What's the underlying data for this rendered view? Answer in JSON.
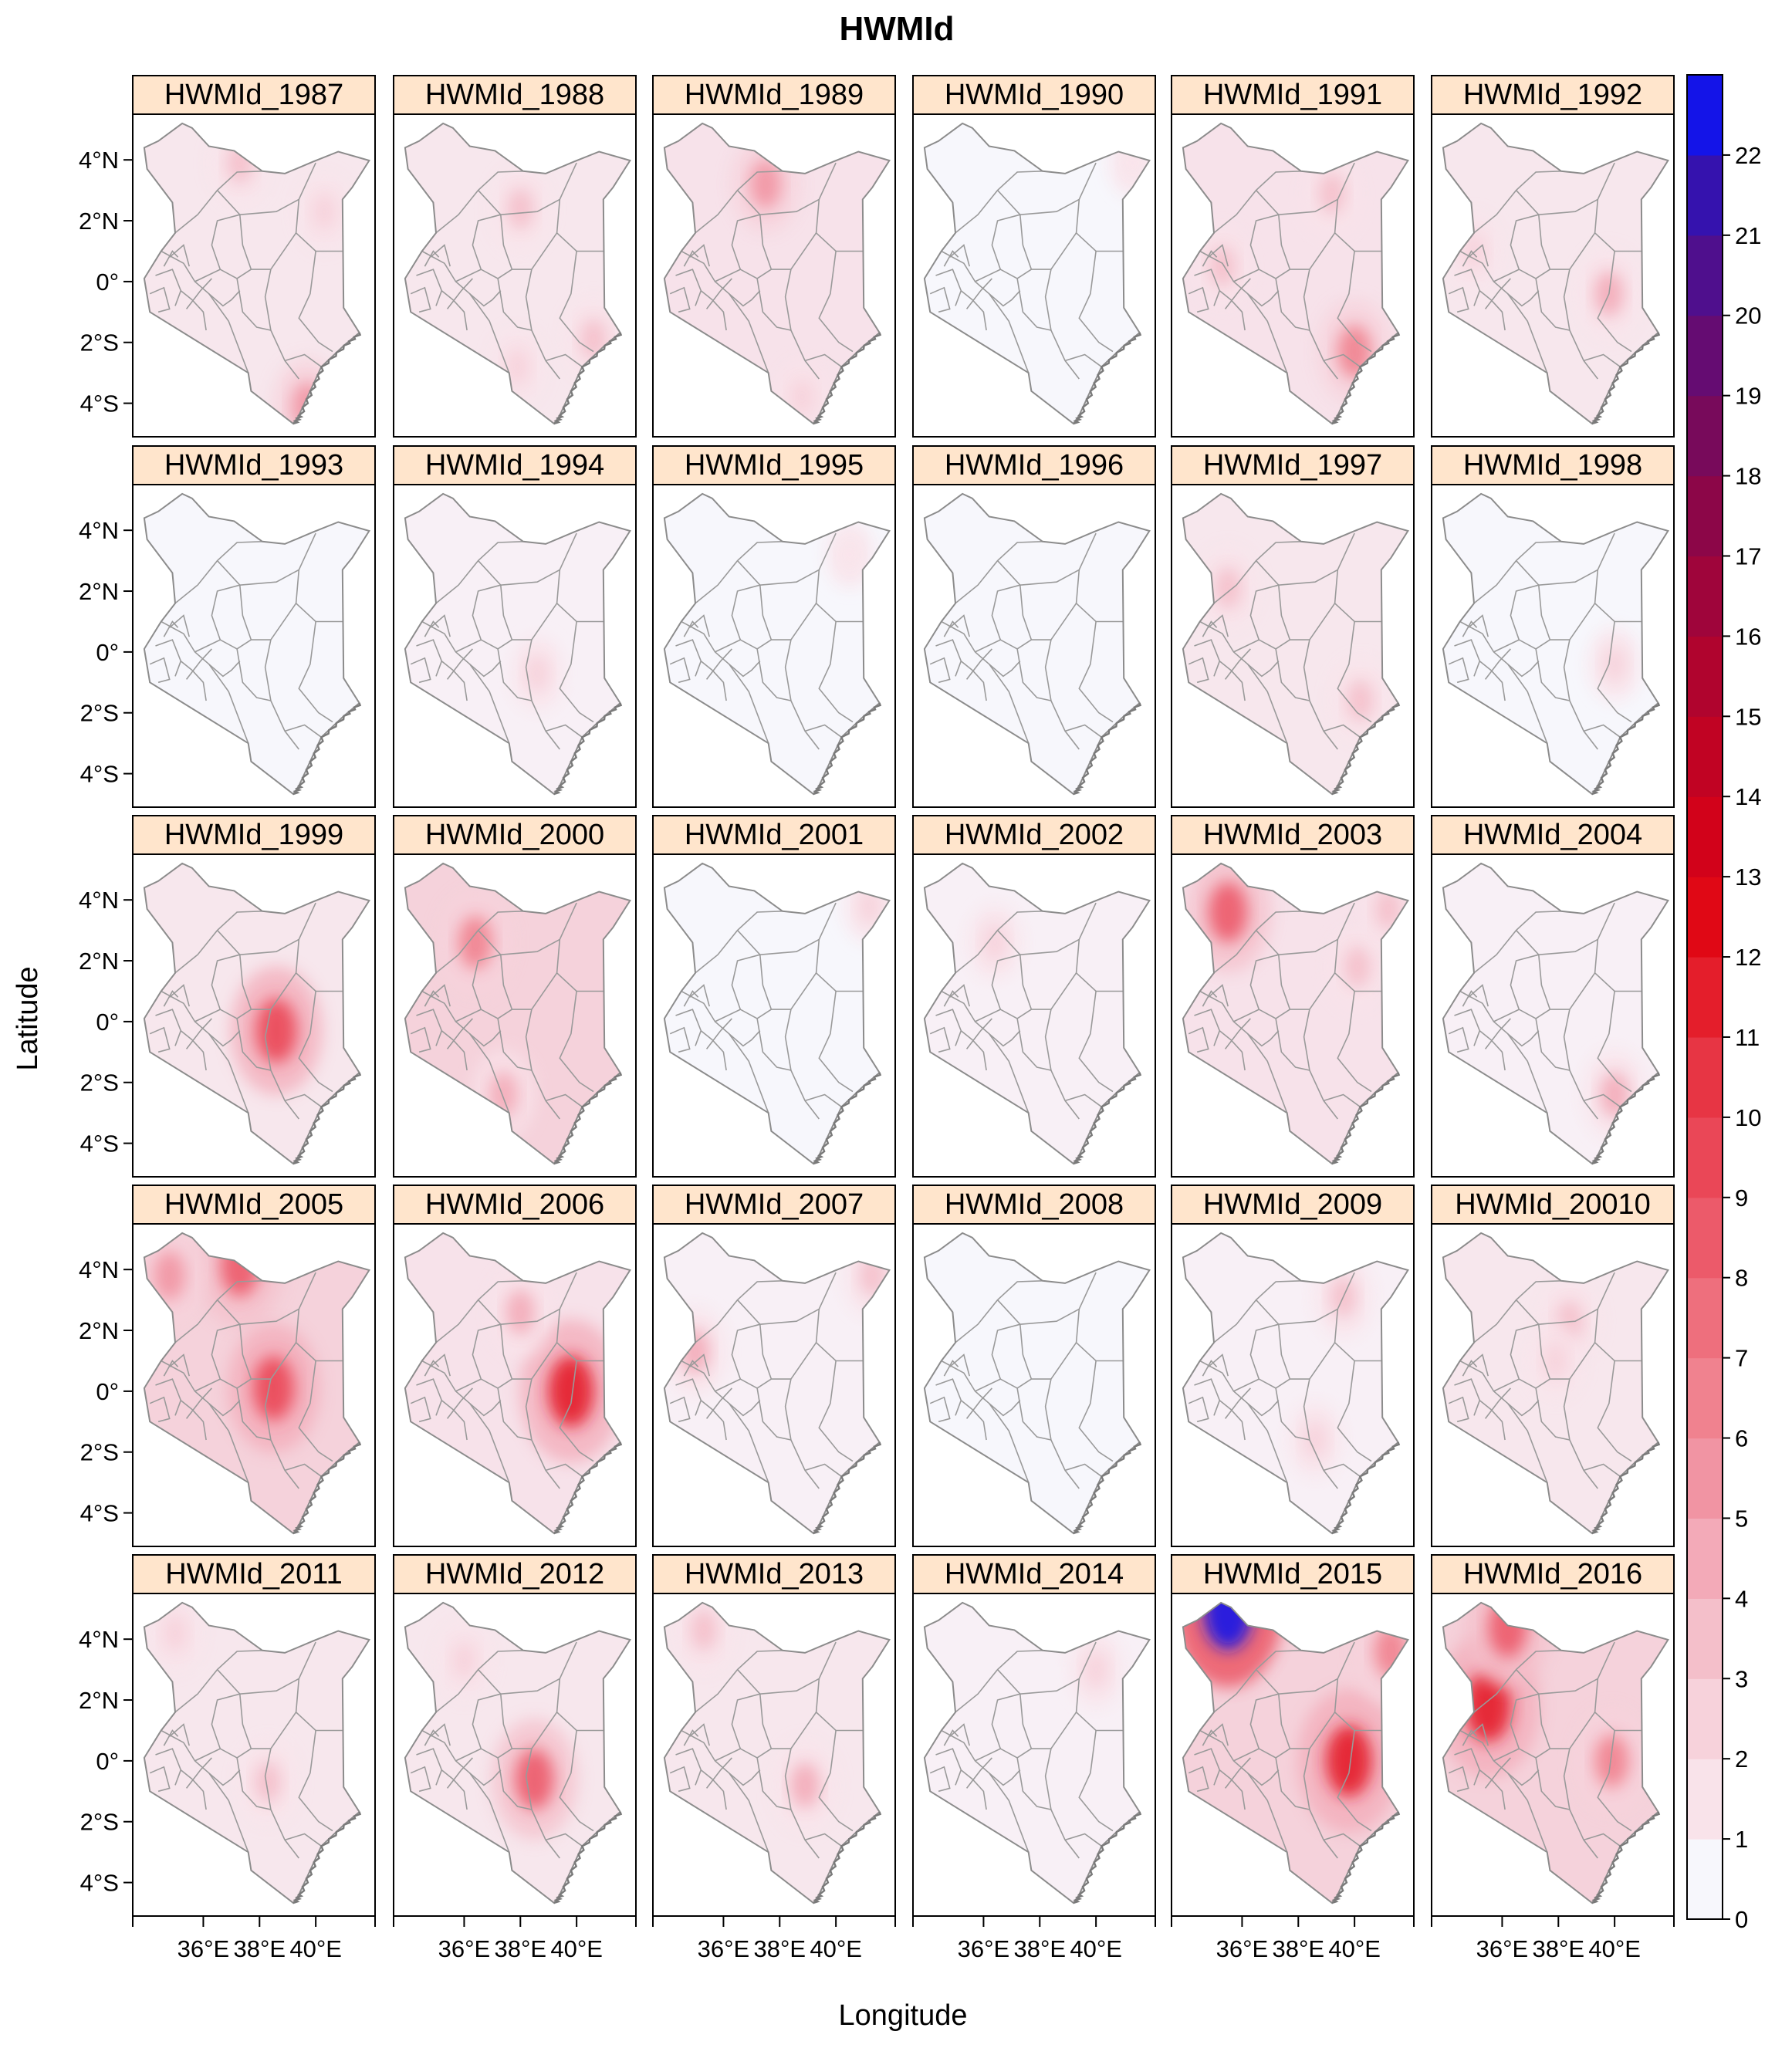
{
  "chart_data": {
    "type": "heatmap",
    "title": "HWMId",
    "xlabel": "Longitude",
    "ylabel": "Latitude",
    "x_ticks": [
      "36°E",
      "38°E",
      "40°E"
    ],
    "y_ticks": [
      "4°N",
      "2°N",
      "0°",
      "2°S",
      "4°S"
    ],
    "panels": [
      {
        "label": "HWMId_1987",
        "intensity": 2,
        "hotspots": [
          {
            "lon": 37.3,
            "lat": 3.9,
            "value": 3
          },
          {
            "lon": 39.7,
            "lat": -4.1,
            "value": 5
          },
          {
            "lon": 40.3,
            "lat": 2.3,
            "value": 2
          }
        ]
      },
      {
        "label": "HWMId_1988",
        "intensity": 2,
        "hotspots": [
          {
            "lon": 38.0,
            "lat": 2.4,
            "value": 3
          },
          {
            "lon": 40.6,
            "lat": -1.9,
            "value": 3
          },
          {
            "lon": 37.9,
            "lat": -2.8,
            "value": 2
          }
        ]
      },
      {
        "label": "HWMId_1989",
        "intensity": 3,
        "hotspots": [
          {
            "lon": 37.5,
            "lat": 3.2,
            "value": 5
          },
          {
            "lon": 38.8,
            "lat": -3.8,
            "value": 2
          }
        ]
      },
      {
        "label": "HWMId_1990",
        "intensity": 0,
        "hotspots": [
          {
            "lon": 41.3,
            "lat": 3.9,
            "value": 1
          }
        ]
      },
      {
        "label": "HWMId_1991",
        "intensity": 3,
        "hotspots": [
          {
            "lon": 40.0,
            "lat": -2.3,
            "value": 6
          },
          {
            "lon": 35.3,
            "lat": 0.5,
            "value": 3
          },
          {
            "lon": 39.2,
            "lat": 2.9,
            "value": 3
          }
        ]
      },
      {
        "label": "HWMId_1992",
        "intensity": 2,
        "hotspots": [
          {
            "lon": 39.8,
            "lat": -0.4,
            "value": 4
          },
          {
            "lon": 35.0,
            "lat": 1.0,
            "value": 2
          }
        ]
      },
      {
        "label": "HWMId_1993",
        "intensity": 0,
        "hotspots": []
      },
      {
        "label": "HWMId_1994",
        "intensity": 1,
        "hotspots": [
          {
            "lon": 38.6,
            "lat": -0.7,
            "value": 2
          }
        ]
      },
      {
        "label": "HWMId_1995",
        "intensity": 0,
        "hotspots": [
          {
            "lon": 40.5,
            "lat": 3.2,
            "value": 1
          }
        ]
      },
      {
        "label": "HWMId_1996",
        "intensity": 0,
        "hotspots": []
      },
      {
        "label": "HWMId_1997",
        "intensity": 2,
        "hotspots": [
          {
            "lon": 35.5,
            "lat": 2.1,
            "value": 3
          },
          {
            "lon": 40.2,
            "lat": -1.6,
            "value": 3
          }
        ]
      },
      {
        "label": "HWMId_1998",
        "intensity": 0,
        "hotspots": [
          {
            "lon": 40.0,
            "lat": -0.4,
            "value": 2
          }
        ]
      },
      {
        "label": "HWMId_1999",
        "intensity": 2,
        "hotspots": [
          {
            "lon": 38.6,
            "lat": -0.3,
            "value": 9
          }
        ]
      },
      {
        "label": "HWMId_2000",
        "intensity": 4,
        "hotspots": [
          {
            "lon": 36.4,
            "lat": 2.6,
            "value": 6
          },
          {
            "lon": 37.4,
            "lat": -2.4,
            "value": 4
          }
        ]
      },
      {
        "label": "HWMId_2001",
        "intensity": 0,
        "hotspots": [
          {
            "lon": 41.2,
            "lat": 3.8,
            "value": 2
          }
        ]
      },
      {
        "label": "HWMId_2002",
        "intensity": 1,
        "hotspots": [
          {
            "lon": 36.4,
            "lat": 2.6,
            "value": 2
          }
        ]
      },
      {
        "label": "HWMId_2003",
        "intensity": 3,
        "hotspots": [
          {
            "lon": 35.5,
            "lat": 3.6,
            "value": 8
          },
          {
            "lon": 40.1,
            "lat": 1.8,
            "value": 3
          },
          {
            "lon": 41.2,
            "lat": 3.7,
            "value": 3
          }
        ]
      },
      {
        "label": "HWMId_2004",
        "intensity": 1,
        "hotspots": [
          {
            "lon": 40.0,
            "lat": -2.4,
            "value": 4
          }
        ]
      },
      {
        "label": "HWMId_2005",
        "intensity": 4,
        "hotspots": [
          {
            "lon": 37.3,
            "lat": 4.1,
            "value": 8
          },
          {
            "lon": 38.5,
            "lat": 0.1,
            "value": 9
          },
          {
            "lon": 34.8,
            "lat": 3.8,
            "value": 5
          }
        ]
      },
      {
        "label": "HWMId_2006",
        "intensity": 3,
        "hotspots": [
          {
            "lon": 39.8,
            "lat": 0.0,
            "value": 11
          },
          {
            "lon": 38.0,
            "lat": 2.6,
            "value": 4
          }
        ]
      },
      {
        "label": "HWMId_2007",
        "intensity": 1,
        "hotspots": [
          {
            "lon": 35.0,
            "lat": 1.3,
            "value": 4
          },
          {
            "lon": 41.3,
            "lat": 3.8,
            "value": 3
          }
        ]
      },
      {
        "label": "HWMId_2008",
        "intensity": 0,
        "hotspots": []
      },
      {
        "label": "HWMId_2009",
        "intensity": 1,
        "hotspots": [
          {
            "lon": 39.6,
            "lat": 3.1,
            "value": 3
          },
          {
            "lon": 38.6,
            "lat": -1.6,
            "value": 2
          }
        ]
      },
      {
        "label": "HWMId_20010",
        "intensity": 2,
        "hotspots": [
          {
            "lon": 38.4,
            "lat": 2.3,
            "value": 3
          },
          {
            "lon": 37.9,
            "lat": 1.0,
            "value": 2
          }
        ]
      },
      {
        "label": "HWMId_2011",
        "intensity": 2,
        "hotspots": [
          {
            "lon": 38.3,
            "lat": -0.7,
            "value": 3
          },
          {
            "lon": 35.0,
            "lat": 4.2,
            "value": 2
          }
        ]
      },
      {
        "label": "HWMId_2012",
        "intensity": 2,
        "hotspots": [
          {
            "lon": 38.5,
            "lat": -0.6,
            "value": 8
          },
          {
            "lon": 36.0,
            "lat": 3.3,
            "value": 2
          }
        ]
      },
      {
        "label": "HWMId_2013",
        "intensity": 2,
        "hotspots": [
          {
            "lon": 38.9,
            "lat": -0.8,
            "value": 4
          },
          {
            "lon": 35.3,
            "lat": 4.3,
            "value": 3
          }
        ]
      },
      {
        "label": "HWMId_2014",
        "intensity": 1,
        "hotspots": [
          {
            "lon": 40.0,
            "lat": 3.0,
            "value": 2
          }
        ]
      },
      {
        "label": "HWMId_2015",
        "intensity": 4,
        "hotspots": [
          {
            "lon": 35.5,
            "lat": 4.9,
            "value": 22
          },
          {
            "lon": 39.8,
            "lat": 0.0,
            "value": 11
          },
          {
            "lon": 41.3,
            "lat": 3.6,
            "value": 6
          }
        ]
      },
      {
        "label": "HWMId_2016",
        "intensity": 4,
        "hotspots": [
          {
            "lon": 35.5,
            "lat": 1.8,
            "value": 11
          },
          {
            "lon": 36.2,
            "lat": 4.4,
            "value": 8
          },
          {
            "lon": 39.9,
            "lat": 0.0,
            "value": 6
          }
        ]
      }
    ],
    "colorbar": {
      "range": [
        0,
        23
      ],
      "tick_labels": [
        "0",
        "1",
        "2",
        "3",
        "4",
        "5",
        "6",
        "7",
        "8",
        "9",
        "10",
        "11",
        "12",
        "13",
        "14",
        "15",
        "16",
        "17",
        "18",
        "19",
        "20",
        "21",
        "22"
      ],
      "colors": [
        "#f7f7fc",
        "#f9e3ea",
        "#f7d2db",
        "#f4bfca",
        "#f3aab8",
        "#f194a3",
        "#f0828f",
        "#ee6f7d",
        "#ec5a6a",
        "#ea4757",
        "#e73544",
        "#e41e2b",
        "#e00815",
        "#d2021a",
        "#c10323",
        "#b0042e",
        "#9f053b",
        "#8c0648",
        "#780a5b",
        "#650c72",
        "#4f0f8d",
        "#3512ae",
        "#1414e8"
      ]
    }
  }
}
